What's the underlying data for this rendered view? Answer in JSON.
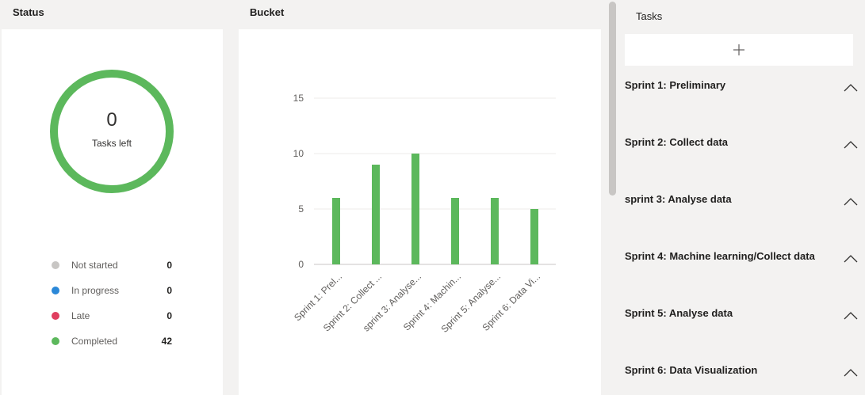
{
  "status": {
    "title": "Status",
    "tasks_left_count": "0",
    "tasks_left_label": "Tasks left",
    "legend": [
      {
        "label": "Not started",
        "value": "0",
        "color": "#c8c6c4"
      },
      {
        "label": "In progress",
        "value": "0",
        "color": "#2b88d8"
      },
      {
        "label": "Late",
        "value": "0",
        "color": "#e03e5f"
      },
      {
        "label": "Completed",
        "value": "42",
        "color": "#5cb85c"
      }
    ],
    "ring_color": "#5cb85c"
  },
  "bucket": {
    "title": "Bucket"
  },
  "chart_data": {
    "type": "bar",
    "categories": [
      "Sprint 1: Prel...",
      "Sprint 2: Collect ...",
      "sprint 3: Analyse...",
      "Sprint 4: Machin...",
      "Sprint 5: Analyse...",
      "Sprint 6: Data Vi..."
    ],
    "values": [
      6,
      9,
      10,
      6,
      6,
      5
    ],
    "ylim": [
      0,
      15
    ],
    "yticks": [
      0,
      5,
      10,
      15
    ],
    "bar_color": "#5cb85c",
    "grid": true
  },
  "tasks": {
    "title": "Tasks",
    "add_icon": "plus-icon",
    "sprints": [
      {
        "label": "Sprint 1: Preliminary"
      },
      {
        "label": "Sprint 2: Collect data"
      },
      {
        "label": "sprint 3: Analyse data"
      },
      {
        "label": "Sprint 4: Machine learning/Collect data"
      },
      {
        "label": "Sprint 5: Analyse data"
      },
      {
        "label": "Sprint 6: Data Visualization"
      }
    ]
  }
}
